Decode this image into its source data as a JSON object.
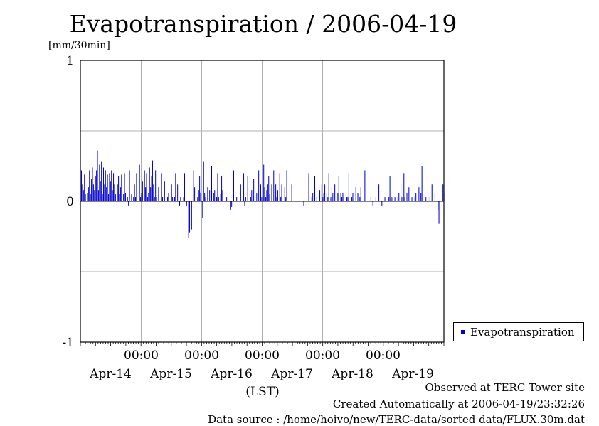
{
  "chart_data": {
    "type": "bar",
    "title": "Evapotranspiration / 2006-04-19",
    "ylabel": "[mm/30min]",
    "xlabel": "(LST)",
    "ylim": [
      -1,
      1
    ],
    "yticks": [
      "1",
      "0",
      "-1"
    ],
    "xtick_times": [
      "00:00",
      "00:00",
      "00:00",
      "00:00",
      "00:00"
    ],
    "xtick_dates": [
      "Apr-14",
      "Apr-15",
      "Apr-16",
      "Apr-17",
      "Apr-18",
      "Apr-19"
    ],
    "grid": true,
    "legend_position": "right",
    "series": [
      {
        "name": "Evapotranspiration",
        "color": "#0000cc",
        "values": [
          0.22,
          0.12,
          0.08,
          0.19,
          0.05,
          0.0,
          0.06,
          0.1,
          0.22,
          0.05,
          0.16,
          0.24,
          0.12,
          0.08,
          0.18,
          0.22,
          0.36,
          0.08,
          0.26,
          0.14,
          0.28,
          0.05,
          0.24,
          0.12,
          0.22,
          0.1,
          0.19,
          0.05,
          0.2,
          0.14,
          0.22,
          0.08,
          0.2,
          0.12,
          0.05,
          0.0,
          0.12,
          0.18,
          0.05,
          0.1,
          0.19,
          0.0,
          0.05,
          0.2,
          0.06,
          0.0,
          0.03,
          -0.03,
          0.22,
          0.0,
          0.05,
          0.0,
          0.03,
          0.12,
          0.03,
          0.2,
          0.0,
          0.0,
          0.26,
          0.03,
          0.06,
          0.14,
          0.0,
          0.22,
          0.1,
          0.2,
          0.03,
          0.06,
          0.24,
          0.1,
          0.18,
          0.29,
          0.12,
          0.03,
          0.22,
          0.03,
          0.0,
          0.1,
          0.0,
          0.0,
          0.2,
          0.03,
          0.0,
          0.14,
          0.0,
          0.0,
          0.03,
          0.06,
          0.0,
          0.0,
          0.12,
          0.03,
          0.0,
          0.03,
          0.2,
          0.0,
          0.12,
          0.0,
          -0.03,
          0.03,
          0.0,
          0.0,
          0.03,
          0.2,
          0.0,
          -0.03,
          0.0,
          -0.26,
          -0.22,
          0.0,
          -0.2,
          0.0,
          0.22,
          0.1,
          0.0,
          0.0,
          0.03,
          0.08,
          0.18,
          0.06,
          0.0,
          -0.12,
          0.28,
          0.06,
          0.03,
          0.0,
          0.1,
          0.0,
          0.08,
          0.0,
          0.25,
          0.0,
          0.06,
          0.08,
          0.0,
          0.03,
          0.2,
          0.03,
          0.0,
          0.05,
          0.18,
          0.08,
          0.0,
          0.0,
          0.0,
          0.03,
          0.0,
          0.0,
          0.0,
          -0.06,
          -0.04,
          0.0,
          0.22,
          0.0,
          0.0,
          0.03,
          0.0,
          0.0,
          0.0,
          0.12,
          0.0,
          0.0,
          0.2,
          -0.03,
          0.03,
          0.0,
          0.18,
          0.0,
          0.0,
          0.03,
          0.08,
          0.0,
          0.16,
          0.0,
          0.0,
          0.06,
          0.0,
          0.22,
          0.0,
          0.12,
          0.03,
          0.0,
          0.26,
          0.1,
          0.03,
          0.08,
          0.12,
          0.18,
          0.05,
          0.0,
          0.12,
          0.0,
          0.22,
          0.0,
          0.12,
          0.03,
          0.08,
          0.0,
          0.2,
          0.03,
          0.12,
          0.0,
          0.0,
          0.1,
          0.03,
          0.22,
          0.0,
          0.0,
          0.0,
          0.0,
          0.12,
          0.0,
          0.0,
          0.0,
          0.0,
          0.0,
          0.0,
          0.0,
          0.0,
          0.0,
          0.0,
          0.0,
          -0.03,
          0.0,
          0.0,
          0.0,
          0.0,
          0.2,
          0.0,
          0.0,
          0.03,
          0.06,
          0.0,
          0.18,
          0.0,
          0.03,
          0.0,
          0.0,
          0.08,
          0.0,
          0.12,
          0.03,
          0.06,
          0.12,
          0.0,
          0.06,
          0.03,
          0.2,
          0.0,
          0.03,
          0.1,
          0.06,
          0.0,
          0.12,
          0.0,
          0.0,
          0.06,
          0.18,
          0.0,
          0.06,
          0.03,
          0.06,
          0.03,
          0.0,
          0.0,
          0.03,
          0.03,
          0.2,
          0.0,
          0.0,
          0.03,
          0.06,
          0.0,
          0.0,
          0.1,
          0.0,
          0.06,
          0.0,
          0.03,
          0.1,
          0.0,
          0.0,
          0.03,
          0.22,
          0.0,
          0.0,
          0.0,
          0.0,
          0.0,
          0.03,
          0.0,
          -0.03,
          0.0,
          0.0,
          0.03,
          0.0,
          0.0,
          0.12,
          0.0,
          0.0,
          -0.03,
          0.0,
          0.0,
          0.03,
          0.0,
          0.0,
          0.0,
          0.03,
          0.18,
          0.0,
          0.03,
          0.0,
          0.0,
          0.03,
          0.0,
          0.0,
          0.03,
          0.06,
          0.0,
          0.12,
          0.03,
          0.0,
          0.2,
          0.03,
          0.0,
          0.06,
          0.0,
          0.1,
          0.0,
          0.0,
          0.03,
          0.0,
          0.0,
          0.03,
          0.06,
          0.0,
          0.0,
          0.1,
          0.0,
          0.06,
          0.25,
          0.03,
          0.0,
          0.0,
          0.03,
          0.0,
          0.03,
          0.0,
          0.03,
          0.0,
          0.12,
          0.0,
          0.0,
          0.06,
          0.0,
          0.0,
          -0.06,
          -0.16,
          0.0,
          0.0,
          0.0,
          0.12,
          0.06
        ]
      }
    ]
  },
  "legend": {
    "label": "Evapotranspiration"
  },
  "footer": {
    "site": "Observed at TERC Tower site",
    "created": "Created Automatically at 2006-04-19/23:32:26",
    "source": "Data source : /home/hoivo/new/TERC-data/sorted  data/FLUX.30m.dat"
  }
}
